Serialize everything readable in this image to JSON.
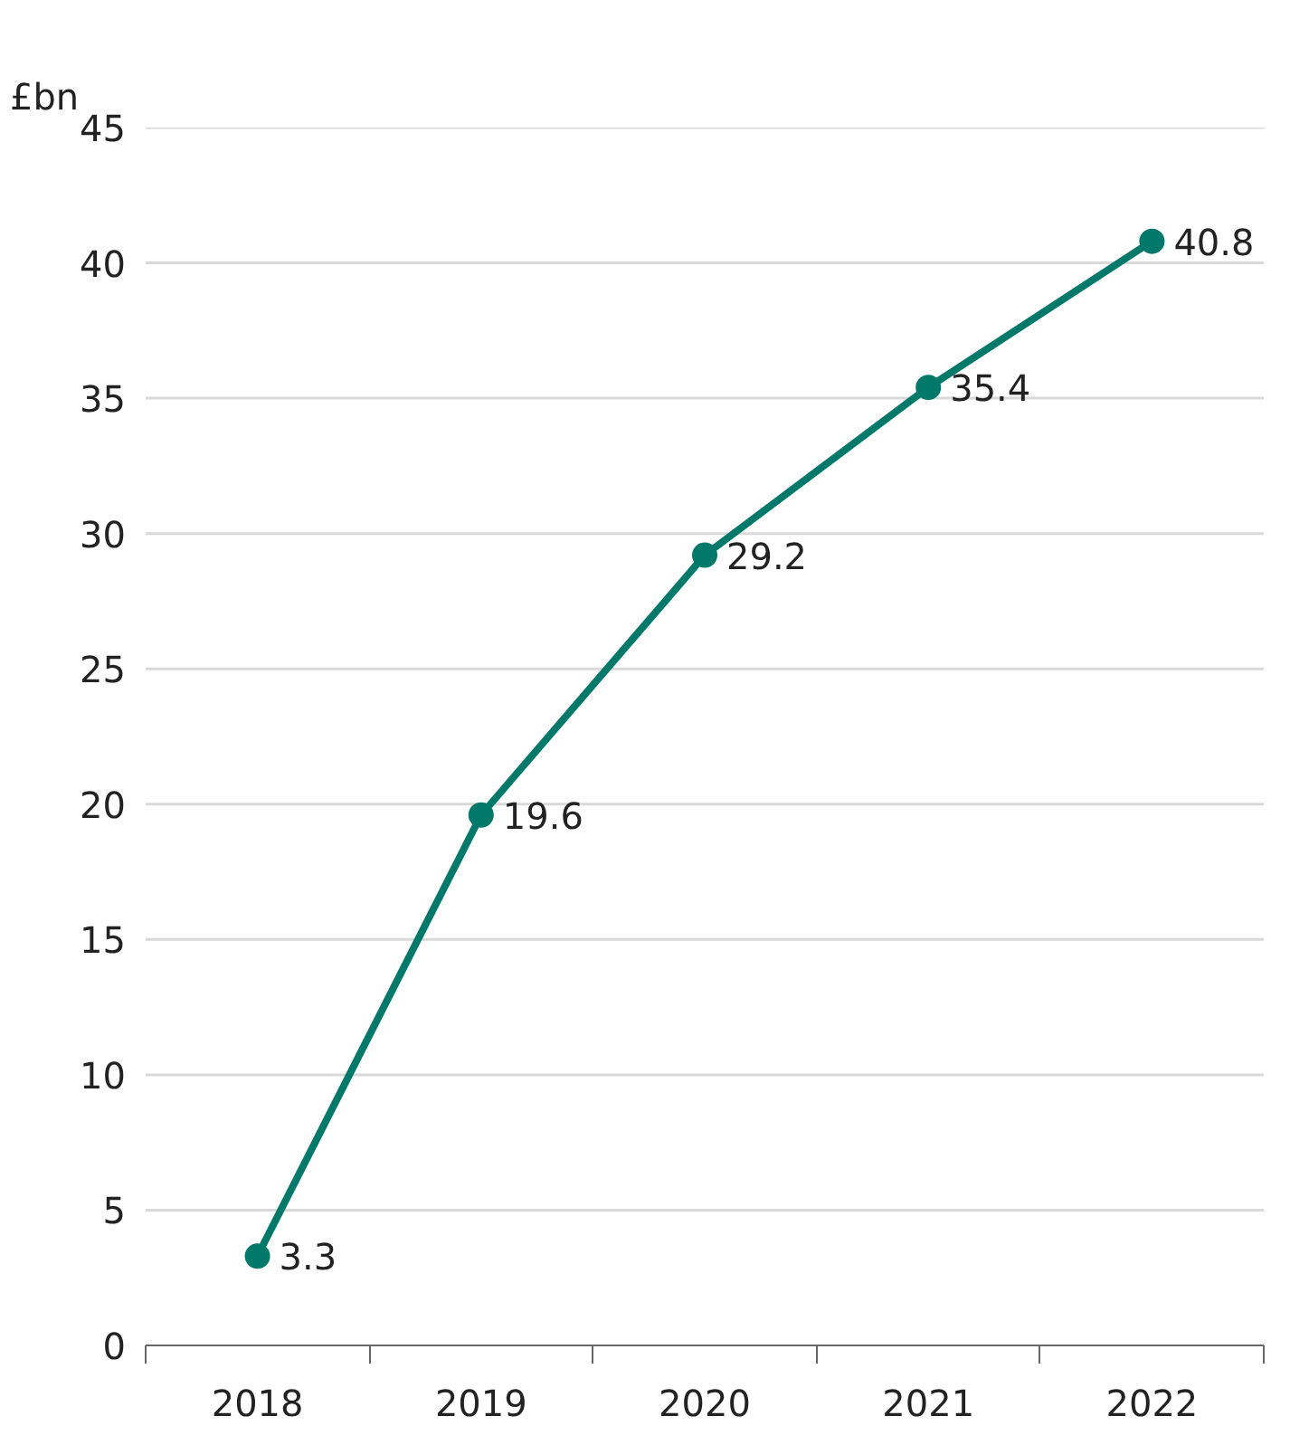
{
  "chart_data": {
    "type": "line",
    "ylabel": "£bn",
    "categories": [
      "2018",
      "2019",
      "2020",
      "2021",
      "2022"
    ],
    "series": [
      {
        "color": "#00796b",
        "values": [
          3.3,
          19.6,
          29.2,
          35.4,
          40.8
        ]
      }
    ],
    "ylim": [
      0,
      45
    ],
    "yticks": [
      0,
      5,
      10,
      15,
      20,
      25,
      30,
      35,
      40,
      45
    ],
    "grid": "y",
    "marker": "circle",
    "line_style": "solid",
    "data_labels": true
  }
}
